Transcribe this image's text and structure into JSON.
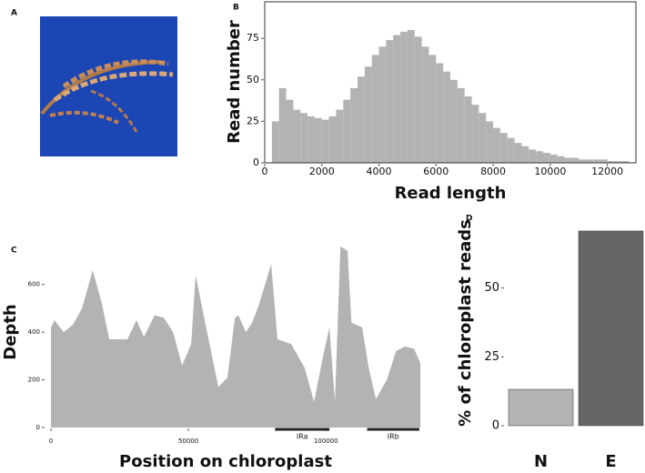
{
  "image_panel_label": "A",
  "chart_data": [
    {
      "type": "histogram",
      "panel": "B",
      "x_label": "Read length",
      "y_label": "Read number",
      "color": "#b3b3b3",
      "bins": [
        250,
        500,
        750,
        1000,
        1250,
        1500,
        1750,
        2000,
        2250,
        2500,
        2750,
        3000,
        3250,
        3500,
        3750,
        4000,
        4250,
        4500,
        4750,
        5000,
        5250,
        5500,
        5750,
        6000,
        6250,
        6500,
        6750,
        7000,
        7250,
        7500,
        7750,
        8000,
        8250,
        8500,
        8750,
        9000,
        9250,
        9500,
        9750,
        10000,
        10250,
        10500,
        10750,
        11000,
        11250,
        11500,
        11750,
        12000,
        12250,
        12500,
        12750
      ],
      "values": [
        25,
        45,
        38,
        32,
        30,
        28,
        27,
        26,
        28,
        32,
        38,
        45,
        52,
        58,
        65,
        70,
        74,
        77,
        79,
        80,
        76,
        70,
        65,
        60,
        55,
        50,
        45,
        40,
        35,
        30,
        25,
        21,
        18,
        15,
        12,
        10,
        8,
        7,
        6,
        5,
        4,
        3,
        3,
        2,
        2,
        2,
        2,
        1,
        1,
        1
      ],
      "xlim": [
        0,
        13000
      ],
      "ylim": [
        0,
        97
      ],
      "xticks": [
        0,
        2000,
        4000,
        6000,
        8000,
        10000,
        12000
      ],
      "yticks": [
        0,
        25,
        50,
        75
      ]
    },
    {
      "type": "area",
      "panel": "C",
      "x_label": "Position on chloroplast",
      "y_label": "Depth",
      "color": "#b3b3b3",
      "x": [
        0,
        1300,
        4600,
        7900,
        11300,
        15200,
        18500,
        21200,
        27800,
        31100,
        33800,
        37700,
        41100,
        44400,
        47700,
        51000,
        52600,
        55900,
        60900,
        64200,
        66900,
        68200,
        70900,
        73200,
        75800,
        80100,
        82400,
        87400,
        92300,
        95700,
        99000,
        101300,
        103300,
        105300,
        107900,
        109300,
        113200,
        115600,
        118200,
        122200,
        125500,
        128800,
        132100,
        134400
      ],
      "values": [
        420,
        450,
        400,
        430,
        500,
        660,
        520,
        370,
        370,
        450,
        380,
        470,
        460,
        400,
        260,
        350,
        640,
        450,
        170,
        210,
        460,
        470,
        400,
        440,
        520,
        685,
        370,
        350,
        250,
        108,
        300,
        420,
        110,
        760,
        740,
        440,
        420,
        250,
        120,
        200,
        320,
        340,
        330,
        270
      ],
      "xlim": [
        -2000,
        137000
      ],
      "ylim": [
        0,
        820
      ],
      "xticks": [
        0,
        50000,
        100000
      ],
      "yticks": [
        0,
        200,
        400,
        600
      ],
      "annotations": [
        {
          "text": "IRa",
          "start": 81500,
          "end": 101300
        },
        {
          "text": "IRb",
          "start": 115000,
          "end": 134000
        }
      ]
    },
    {
      "type": "bar",
      "panel": "D",
      "y_label": "% of chloroplast reads",
      "categories": [
        "N",
        "E"
      ],
      "values": [
        13.2,
        70.7
      ],
      "colors": [
        "#b3b3b3",
        "#666666"
      ],
      "ylim": [
        0,
        72
      ],
      "yticks": [
        0,
        25,
        50
      ]
    }
  ]
}
